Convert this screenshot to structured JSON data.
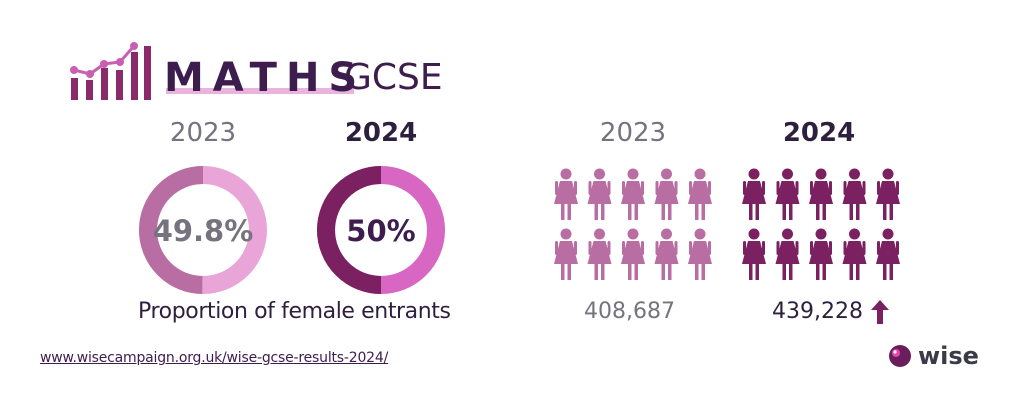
{
  "header": {
    "title": "MATHS",
    "subtitle": "GCSE"
  },
  "chart_data": [
    {
      "type": "pie",
      "title": "Proportion of female entrants",
      "series": [
        {
          "name": "2023",
          "value": 49.8,
          "label": "49.8%"
        },
        {
          "name": "2024",
          "value": 50,
          "label": "50%"
        }
      ]
    },
    {
      "type": "bar",
      "categories": [
        "2023",
        "2024"
      ],
      "values": [
        408687,
        439228
      ],
      "value_labels": [
        "408,687",
        "439,228"
      ],
      "trend": "up"
    }
  ],
  "colors": {
    "dark_purple": "#3d1d4d",
    "grey": "#76737f",
    "mauve": "#b86ea3",
    "light_pink": "#e9a5d8",
    "plum": "#7b2060",
    "magenta": "#d767c3",
    "people_2023": "#b86ea3",
    "people_2024": "#7b2060"
  },
  "icons": {
    "logo": "bar-line-chart-icon",
    "person": "female-person-icon",
    "trend": "arrow-up-icon",
    "brand": "wise-logo-icon"
  },
  "footer": {
    "source_link": "www.wisecampaign.org.uk/wise-gcse-results-2024/",
    "brand": "wise"
  }
}
